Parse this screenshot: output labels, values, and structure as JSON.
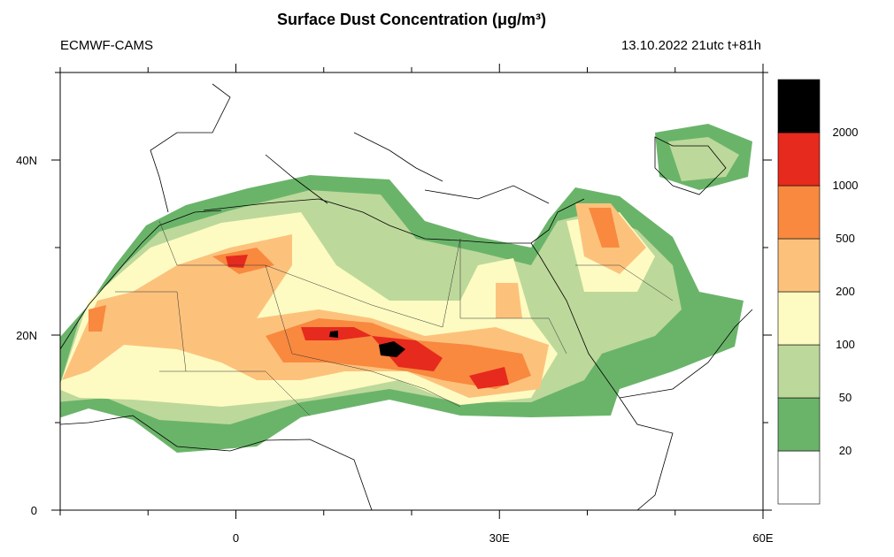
{
  "map": {
    "title": "Surface Dust Concentration (μg/m³)",
    "left_label": "ECMWF-CAMS",
    "right_label": "13.10.2022 21utc t+81h",
    "xlim": [
      -20,
      60
    ],
    "ylim": [
      0,
      50
    ],
    "xticks": [
      -20,
      -10,
      {
        "value": 0,
        "label": "0"
      },
      10,
      20,
      {
        "value": 30,
        "label": "30E"
      },
      40,
      50,
      {
        "value": 60,
        "label": "60E"
      }
    ],
    "yticks": [
      {
        "value": 0,
        "label": "0"
      },
      10,
      {
        "value": 20,
        "label": "20N"
      },
      30,
      {
        "value": 40,
        "label": "40N"
      },
      50
    ],
    "colorbar": {
      "levels": [
        20,
        50,
        100,
        200,
        500,
        1000,
        2000
      ],
      "colors": [
        "#ffffff",
        "#6ab46a",
        "#bdd89b",
        "#fdfbc2",
        "#fcc27c",
        "#f8893f",
        "#e62a1e",
        "#000000"
      ]
    }
  }
}
